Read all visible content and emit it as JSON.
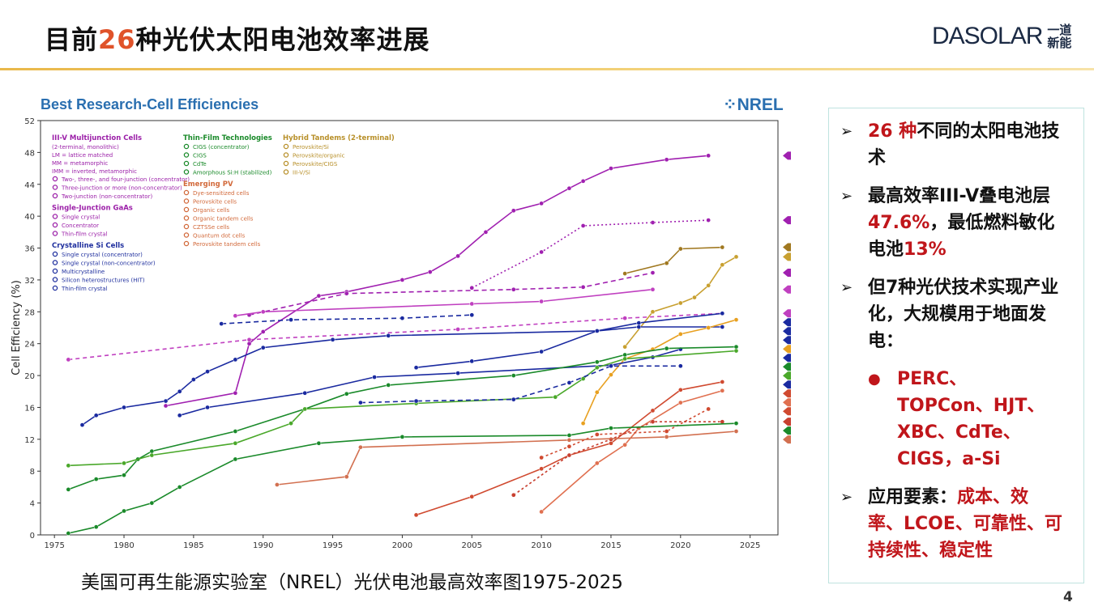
{
  "slide": {
    "title_pre": "目前",
    "title_num": "26",
    "title_post": "种光伏太阳电池效率进展",
    "page_number": "4",
    "caption": "美国可再生能源实验室（NREL）光伏电池最高效率图1975-2025",
    "logo": {
      "word": "DASOLAR",
      "cn_top": "一道",
      "cn_bottom": "新能"
    },
    "accent_color": "#e0532a",
    "rule_color": "#e9b84a"
  },
  "panel": {
    "bullets": [
      {
        "segments": [
          {
            "t": "26 种",
            "red": true
          },
          {
            "t": "不同的太阳电池技术",
            "red": false
          }
        ]
      },
      {
        "segments": [
          {
            "t": "最高效率III-V叠电池层",
            "red": false
          },
          {
            "t": "47.6%",
            "red": true
          },
          {
            "t": "，最低燃料敏化电池",
            "red": false
          },
          {
            "t": "13%",
            "red": true
          }
        ]
      },
      {
        "segments": [
          {
            "t": "但7种光伏技术实现产业化，大规模用于地面发电：",
            "red": false
          }
        ]
      }
    ],
    "sub_bullet": "PERC、TOPCon、HJT、XBC、CdTe、CIGS，a-Si",
    "last_bullet": [
      {
        "t": "应用要素：",
        "red": false
      },
      {
        "t": "成本、效率、LCOE、可靠性、可持续性、稳定性",
        "red": true
      }
    ]
  },
  "chart_data": {
    "type": "line",
    "title": "Best Research-Cell Efficiencies",
    "brand": "NREL",
    "ylabel": "Cell Efficiency (%)",
    "xlabel": "",
    "xlim": [
      1974,
      2027
    ],
    "ylim": [
      0,
      52
    ],
    "xticks": [
      1975,
      1980,
      1985,
      1990,
      1995,
      2000,
      2005,
      2010,
      2015,
      2020,
      2025
    ],
    "yticks": [
      0,
      4,
      8,
      12,
      16,
      20,
      24,
      28,
      32,
      36,
      40,
      44,
      48,
      52
    ],
    "grid": false,
    "legend_placement": "top-left",
    "legend": [
      {
        "group": "III-V Multijunction Cells",
        "color": "#9b1fa8",
        "lines": [
          "(2-terminal, monolithic)",
          "LM = lattice matched",
          "MM = metamorphic",
          "IMM = inverted, metamorphic"
        ],
        "items": [
          "Two-, three-, and four-junction (concentrator)",
          "Three-junction or more (non-concentrator)",
          "Two-junction (non-concentrator)"
        ]
      },
      {
        "group": "Single-Junction GaAs",
        "color": "#9b1fa8",
        "items": [
          "Single crystal",
          "Concentrator",
          "Thin-film crystal"
        ]
      },
      {
        "group": "Crystalline Si Cells",
        "color": "#1f2f9e",
        "items": [
          "Single crystal (concentrator)",
          "Single crystal (non-concentrator)",
          "Multicrystalline",
          "Silicon heterostructures (HIT)",
          "Thin-film crystal"
        ]
      },
      {
        "group": "Thin-Film Technologies",
        "color": "#1a8a2a",
        "items": [
          "CIGS (concentrator)",
          "CIGS",
          "CdTe",
          "Amorphous Si:H (stabilized)"
        ]
      },
      {
        "group": "Emerging PV",
        "color": "#d2693a",
        "items": [
          "Dye-sensitized cells",
          "Perovskite cells",
          "Organic cells",
          "Organic tandem cells",
          "CZTSSe cells",
          "Quantum dot cells",
          "Perovskite tandem cells"
        ]
      },
      {
        "group": "Hybrid Tandems (2-terminal)",
        "color": "#b8902a",
        "items": [
          "Perovskite/Si",
          "Perovskite/organic",
          "Perovskite/CIGS",
          "III-V/Si"
        ]
      }
    ],
    "series": [
      {
        "name": "Two-, three-, and four-junction (concentrator)",
        "color": "#a020b0",
        "dash": "",
        "x": [
          1983,
          1988,
          1989,
          1990,
          1994,
          1996,
          2000,
          2002,
          2004,
          2006,
          2008,
          2010,
          2012,
          2013,
          2015,
          2019,
          2022
        ],
        "y": [
          16.2,
          17.8,
          24,
          25.5,
          30,
          30.5,
          32,
          33,
          35,
          38,
          40.7,
          41.6,
          43.5,
          44.4,
          46,
          47.1,
          47.6
        ],
        "end_label": "47.6%"
      },
      {
        "name": "Three-junction or more (non-concentrator)",
        "color": "#a020b0",
        "dash": "2,3",
        "x": [
          2005,
          2010,
          2013,
          2018,
          2022
        ],
        "y": [
          31,
          35.5,
          38.8,
          39.2,
          39.5
        ],
        "end_label": "39.5%"
      },
      {
        "name": "III-V/Si",
        "color": "#a07820",
        "dash": "",
        "x": [
          2016,
          2019,
          2020,
          2023
        ],
        "y": [
          32.8,
          34.1,
          35.9,
          36.1
        ],
        "end_label": "36.1%"
      },
      {
        "name": "Perovskite/Si",
        "color": "#c8a030",
        "dash": "",
        "x": [
          2016,
          2018,
          2020,
          2021,
          2022,
          2023,
          2024
        ],
        "y": [
          23.6,
          28,
          29.1,
          29.8,
          31.3,
          33.9,
          34.9
        ],
        "end_label": "34.9%"
      },
      {
        "name": "Two-junction (non-concentrator)",
        "color": "#a020b0",
        "dash": "6,4",
        "x": [
          1989,
          1996,
          2008,
          2013,
          2018
        ],
        "y": [
          27.6,
          30.3,
          30.8,
          31.1,
          32.9
        ],
        "end_label": "32.9%"
      },
      {
        "name": "Single-Junction GaAs: Concentrator",
        "color": "#c040c0",
        "dash": "",
        "x": [
          1988,
          1990,
          2005,
          2010,
          2018
        ],
        "y": [
          27.5,
          28,
          29,
          29.3,
          30.8
        ],
        "end_label": "30.8%"
      },
      {
        "name": "Single-Junction GaAs: Single crystal",
        "color": "#c040c0",
        "dash": "5,4",
        "x": [
          1976,
          1989,
          2004,
          2016,
          2023
        ],
        "y": [
          22,
          24.5,
          25.8,
          27.2,
          27.8
        ],
        "end_label": "27.8%"
      },
      {
        "name": "Silicon heterostructures (HIT)",
        "color": "#1a2aa0",
        "dash": "",
        "x": [
          2001,
          2005,
          2010,
          2014,
          2017,
          2023
        ],
        "y": [
          21,
          21.8,
          23,
          25.6,
          26.6,
          27.8
        ],
        "end_label": "27.8%"
      },
      {
        "name": "Single crystal (non-concentrator)",
        "color": "#1a2aa0",
        "dash": "",
        "x": [
          1977,
          1978,
          1980,
          1983,
          1984,
          1985,
          1986,
          1988,
          1990,
          1995,
          1999,
          2014,
          2017,
          2023
        ],
        "y": [
          13.8,
          15,
          16,
          16.8,
          18,
          19.5,
          20.5,
          22,
          23.5,
          24.5,
          25,
          25.6,
          26.1,
          26.1
        ],
        "end_label": "26.1%"
      },
      {
        "name": "Single crystal (concentrator)",
        "color": "#1a2aa0",
        "dash": "6,4",
        "x": [
          1987,
          1992,
          2000,
          2005
        ],
        "y": [
          26.5,
          27,
          27.2,
          27.6
        ],
        "end_label": "27.6%"
      },
      {
        "name": "Perovskite cells",
        "color": "#e8a020",
        "dash": "",
        "x": [
          2013,
          2014,
          2015,
          2016,
          2018,
          2020,
          2022,
          2024
        ],
        "y": [
          14,
          17.9,
          20.1,
          22.1,
          23.3,
          25.2,
          26,
          27
        ],
        "end_label": "27.0%"
      },
      {
        "name": "Multicrystalline",
        "color": "#1a2aa0",
        "dash": "",
        "x": [
          1984,
          1986,
          1993,
          1998,
          2004,
          2015,
          2018,
          2020
        ],
        "y": [
          15,
          16,
          17.8,
          19.8,
          20.3,
          21.3,
          22.3,
          23.3
        ],
        "end_label": "23.3%"
      },
      {
        "name": "CIGS",
        "color": "#1a8a2a",
        "dash": "",
        "x": [
          1976,
          1978,
          1980,
          1981,
          1982,
          1988,
          1993,
          1996,
          1999,
          2008,
          2014,
          2016,
          2019,
          2024
        ],
        "y": [
          5.7,
          7,
          7.5,
          9.5,
          10.5,
          13,
          15.8,
          17.7,
          18.8,
          20,
          21.7,
          22.6,
          23.4,
          23.6
        ],
        "end_label": "23.6%"
      },
      {
        "name": "CdTe",
        "color": "#4aa82a",
        "dash": "",
        "x": [
          1976,
          1980,
          1982,
          1988,
          1992,
          1993,
          2001,
          2011,
          2013,
          2014,
          2016,
          2024
        ],
        "y": [
          8.7,
          9,
          10,
          11.5,
          14,
          15.8,
          16.5,
          17.3,
          19.6,
          21,
          22.1,
          23.1
        ],
        "end_label": "23.1%"
      },
      {
        "name": "Thin-film crystal",
        "color": "#1a2aa0",
        "dash": "6,4",
        "x": [
          1997,
          2001,
          2008,
          2012,
          2015,
          2020
        ],
        "y": [
          16.6,
          16.8,
          17,
          19.1,
          21.2,
          21.2
        ],
        "end_label": "21.2%"
      },
      {
        "name": "Organic cells",
        "color": "#d04a30",
        "dash": "",
        "x": [
          2001,
          2005,
          2010,
          2012,
          2015,
          2018,
          2020,
          2023
        ],
        "y": [
          2.5,
          4.8,
          8.3,
          10,
          11.5,
          15.6,
          18.2,
          19.2
        ],
        "end_label": "19.2%"
      },
      {
        "name": "Quantum dot cells",
        "color": "#e07050",
        "dash": "",
        "x": [
          2010,
          2014,
          2016,
          2017,
          2020,
          2023
        ],
        "y": [
          2.9,
          9,
          11.3,
          13.4,
          16.6,
          18.1
        ],
        "end_label": "18.1%"
      },
      {
        "name": "CZTSSe cells",
        "color": "#d04a30",
        "dash": "3,3",
        "x": [
          2010,
          2012,
          2014,
          2019,
          2022
        ],
        "y": [
          9.7,
          11.1,
          12.6,
          13,
          15.8
        ],
        "end_label": "15.8%"
      },
      {
        "name": "Organic tandem cells",
        "color": "#c84030",
        "dash": "3,3",
        "x": [
          2008,
          2012,
          2015,
          2018,
          2023
        ],
        "y": [
          5,
          10,
          12,
          14.2,
          14.2
        ],
        "end_label": "14.2%"
      },
      {
        "name": "Amorphous Si:H (stabilized)",
        "color": "#1a8a2a",
        "dash": "",
        "x": [
          1976,
          1978,
          1980,
          1982,
          1984,
          1988,
          1994,
          2000,
          2012,
          2015,
          2024
        ],
        "y": [
          0.2,
          1,
          3,
          4,
          6,
          9.5,
          11.5,
          12.3,
          12.5,
          13.4,
          14
        ],
        "end_label": "14.0%"
      },
      {
        "name": "Dye-sensitized cells",
        "color": "#d27050",
        "dash": "",
        "x": [
          1991,
          1996,
          1997,
          2012,
          2019,
          2024
        ],
        "y": [
          6.3,
          7.3,
          11,
          11.9,
          12.3,
          13
        ],
        "end_label": "13.0%"
      }
    ]
  }
}
